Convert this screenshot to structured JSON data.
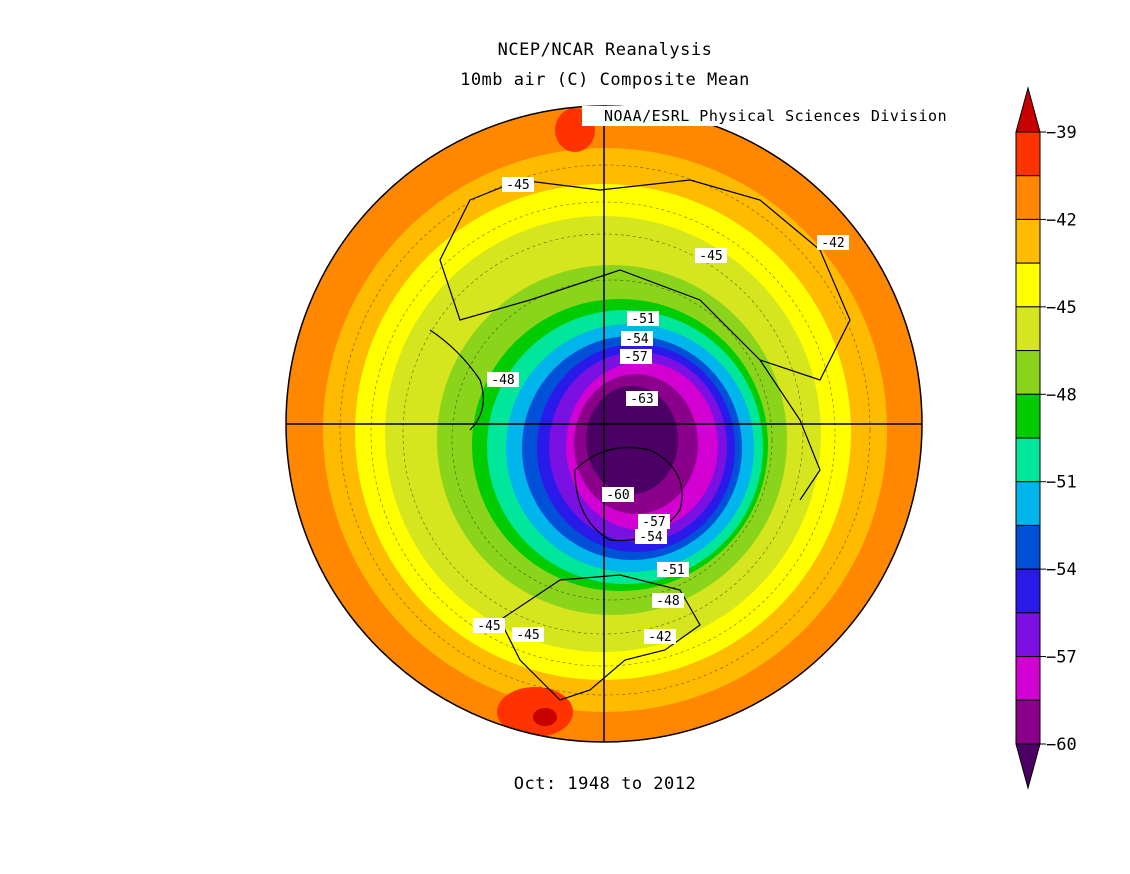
{
  "header": {
    "title_line1": "NCEP/NCAR Reanalysis",
    "title_line2": "10mb air (C) Composite Mean",
    "credit": "NOAA/ESRL Physical Sciences Division"
  },
  "footer": {
    "period": "Oct: 1948 to 2012"
  },
  "map": {
    "projection": "north-polar-stereographic",
    "variable": "10mb air temperature",
    "units": "C",
    "contour_labels": [
      "-45",
      "-45",
      "-42",
      "-51",
      "-54",
      "-57",
      "-48",
      "-63",
      "-60",
      "-57",
      "-54",
      "-51",
      "-48",
      "-45",
      "-45",
      "-42"
    ]
  },
  "colorbar": {
    "ticks": [
      "-39",
      "-42",
      "-45",
      "-48",
      "-51",
      "-54",
      "-57",
      "-60"
    ],
    "colors": [
      "#c80000",
      "#ff3300",
      "#ff8800",
      "#ffbb00",
      "#ffff00",
      "#d6e61e",
      "#8bd41c",
      "#00cc00",
      "#00e69a",
      "#00b4ec",
      "#0050d8",
      "#2a1aea",
      "#7a10e2",
      "#d200d2",
      "#8a008a",
      "#4c0066"
    ]
  },
  "chart_data": {
    "type": "heatmap",
    "title": "NCEP/NCAR Reanalysis 10mb air (C) Composite Mean",
    "subtitle": "Oct: 1948 to 2012",
    "colorbar_ticks": [
      -39,
      -42,
      -45,
      -48,
      -51,
      -54,
      -57,
      -60
    ],
    "contour_labels": [
      -45,
      -45,
      -42,
      -51,
      -54,
      -57,
      -48,
      -63,
      -60,
      -57,
      -54,
      -51,
      -48,
      -45,
      -45,
      -42
    ],
    "min_value": -63,
    "max_value": -39
  }
}
